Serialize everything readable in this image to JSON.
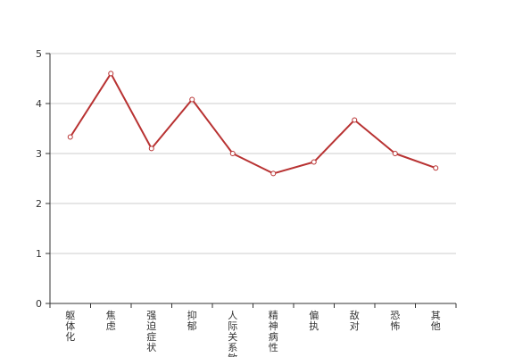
{
  "chart_data": {
    "type": "line",
    "title": "",
    "xlabel": "",
    "ylabel": "",
    "categories": [
      "躯体化",
      "焦虑",
      "强迫症状",
      "抑郁",
      "人际关系敏感",
      "精神病性",
      "偏执",
      "敌对",
      "恐怖",
      "其他"
    ],
    "series": [
      {
        "values": [
          3.33,
          4.6,
          3.1,
          4.08,
          3.0,
          2.6,
          2.83,
          3.67,
          3.0,
          2.71
        ]
      }
    ],
    "ylim": [
      0,
      5
    ],
    "yticks": [
      0,
      1,
      2,
      3,
      4,
      5
    ],
    "grid": true,
    "legend": "none",
    "colors": {
      "line": "#b83232",
      "marker_fill": "#ffffff",
      "grid": "#cccccc",
      "axis": "#333333"
    }
  }
}
